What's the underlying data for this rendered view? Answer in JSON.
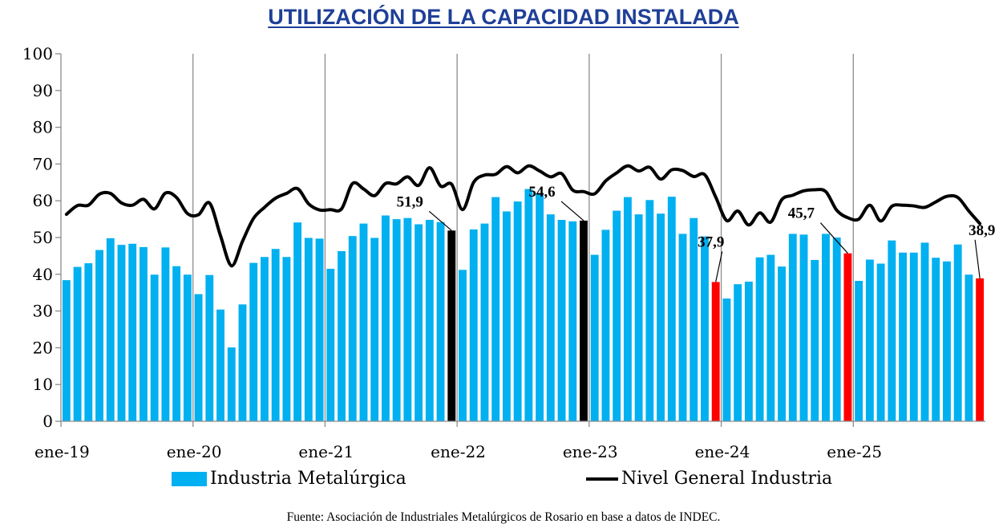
{
  "chart_data": {
    "type": "bar",
    "title": "UTILIZACIÓN DE LA CAPACIDAD INSTALADA",
    "xlabel": "",
    "ylabel": "",
    "ylim": [
      0,
      100
    ],
    "yticks": [
      0,
      10,
      20,
      30,
      40,
      50,
      60,
      70,
      80,
      90,
      100
    ],
    "x_start": "ene-19",
    "x_tick_labels": [
      "ene-19",
      "ene-20",
      "ene-21",
      "ene-22",
      "ene-23",
      "ene-24",
      "ene-25"
    ],
    "grid": "vertical lines at each January",
    "legend_position": "bottom",
    "series": [
      {
        "name": "Industria Metalúrgica",
        "type": "bar",
        "color": "#00b0f0",
        "values": [
          38.4,
          42.0,
          43.0,
          46.6,
          49.8,
          48.0,
          48.3,
          47.4,
          39.9,
          47.3,
          42.2,
          39.9,
          34.6,
          39.8,
          30.4,
          20.1,
          31.8,
          43.1,
          44.7,
          46.9,
          44.7,
          54.1,
          49.9,
          49.7,
          41.5,
          46.3,
          50.4,
          53.8,
          49.9,
          56.0,
          55.0,
          55.3,
          53.6,
          54.8,
          54.2,
          51.9,
          41.2,
          52.2,
          53.8,
          61.0,
          57.1,
          59.8,
          63.2,
          62.0,
          56.3,
          54.8,
          54.4,
          54.6,
          45.3,
          52.1,
          57.3,
          61.0,
          56.3,
          60.2,
          56.5,
          61.1,
          51.0,
          55.3,
          50.3,
          37.9,
          33.4,
          37.3,
          38.0,
          44.6,
          45.3,
          42.1,
          51.0,
          50.8,
          43.9,
          51.0,
          50.0,
          45.7,
          38.2,
          44.0,
          42.9,
          49.2,
          45.9,
          45.9,
          48.6,
          44.5,
          43.5,
          48.1,
          39.9,
          38.9
        ]
      },
      {
        "name": "Nivel General Industria",
        "type": "line",
        "color": "#000000",
        "values": [
          56.3,
          58.7,
          58.8,
          61.8,
          62.0,
          59.4,
          58.8,
          60.4,
          57.8,
          62.1,
          60.9,
          56.5,
          56.2,
          59.4,
          50.5,
          42.3,
          49.0,
          55.2,
          58.2,
          60.7,
          62.0,
          63.3,
          59.2,
          57.5,
          57.6,
          57.8,
          64.7,
          63.2,
          61.4,
          64.7,
          64.6,
          66.5,
          64.2,
          69.0,
          64.0,
          64.5,
          57.6,
          65.0,
          67.0,
          67.2,
          69.3,
          67.6,
          69.5,
          68.1,
          66.5,
          67.4,
          62.9,
          62.5,
          61.9,
          65.4,
          67.6,
          69.5,
          68.1,
          69.1,
          65.9,
          68.4,
          68.2,
          66.6,
          67.1,
          61.0,
          54.6,
          57.2,
          53.4,
          56.7,
          54.2,
          60.3,
          61.5,
          62.7,
          63.0,
          62.5,
          57.4,
          55.4,
          55.0,
          58.8,
          54.5,
          58.5,
          58.8,
          58.6,
          58.2,
          59.7,
          61.2,
          60.9,
          57.2,
          53.8
        ]
      }
    ],
    "highlights": [
      {
        "index": 35,
        "label": "51,9",
        "color": "#000000"
      },
      {
        "index": 47,
        "label": "54,6",
        "color": "#000000"
      },
      {
        "index": 59,
        "label": "37,9",
        "color": "#ff0000"
      },
      {
        "index": 71,
        "label": "45,7",
        "color": "#ff0000"
      },
      {
        "index": 83,
        "label": "38,9",
        "color": "#ff0000"
      }
    ]
  },
  "legend": {
    "bar_label": "Industria Metalúrgica",
    "line_label": "Nivel General Industria"
  },
  "source": "Fuente: Asociación de Industriales Metalúrgicos de Rosario en base a datos de INDEC."
}
